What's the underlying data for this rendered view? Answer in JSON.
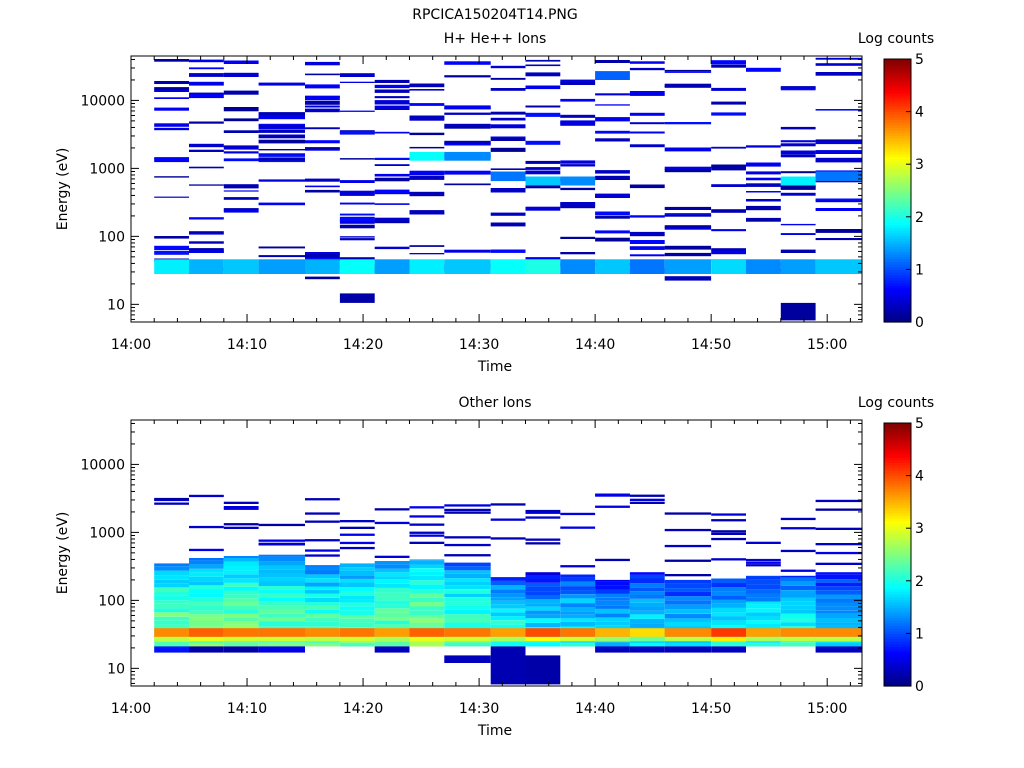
{
  "figure_title": "RPCICA150204T14.PNG",
  "chart_data": [
    {
      "type": "heatmap",
      "title": "H+ He++ Ions",
      "xlabel": "Time",
      "ylabel": "Energy (eV)",
      "x_ticks": [
        "14:00",
        "14:10",
        "14:20",
        "14:30",
        "14:40",
        "14:50",
        "15:00"
      ],
      "x_range": [
        "14:00",
        "15:03"
      ],
      "y_ticks": [
        10,
        100,
        1000,
        10000
      ],
      "y_tick_labels": [
        "10",
        "100",
        "1000",
        "10000"
      ],
      "ylim": [
        5.5,
        45000
      ],
      "y_scale": "log",
      "colorbar_title": "Log counts",
      "colorbar_ticks": [
        0,
        1,
        2,
        3,
        4,
        5
      ],
      "colorbar_range": [
        0,
        5
      ],
      "colormap": "jet",
      "time_bins_start": [
        "14:02",
        "14:05",
        "14:08",
        "14:11",
        "14:15",
        "14:18",
        "14:21",
        "14:24",
        "14:27",
        "14:31",
        "14:34",
        "14:37",
        "14:40",
        "14:43",
        "14:46",
        "14:50",
        "14:53",
        "14:56",
        "14:59"
      ],
      "time_bins_end": [
        "14:05",
        "14:08",
        "14:11",
        "14:15",
        "14:18",
        "14:21",
        "14:24",
        "14:27",
        "14:31",
        "14:34",
        "14:37",
        "14:40",
        "14:43",
        "14:46",
        "14:50",
        "14:53",
        "14:56",
        "14:59",
        "15:03"
      ],
      "cells": [
        {
          "bin": 0,
          "energy_low_eV": 28,
          "energy_high_eV": 46,
          "log_counts": 1.8
        },
        {
          "bin": 1,
          "energy_low_eV": 28,
          "energy_high_eV": 46,
          "log_counts": 1.5
        },
        {
          "bin": 2,
          "energy_low_eV": 28,
          "energy_high_eV": 46,
          "log_counts": 1.6
        },
        {
          "bin": 3,
          "energy_low_eV": 28,
          "energy_high_eV": 46,
          "log_counts": 1.4
        },
        {
          "bin": 4,
          "energy_low_eV": 28,
          "energy_high_eV": 46,
          "log_counts": 1.5
        },
        {
          "bin": 5,
          "energy_low_eV": 28,
          "energy_high_eV": 46,
          "log_counts": 1.9
        },
        {
          "bin": 6,
          "energy_low_eV": 28,
          "energy_high_eV": 46,
          "log_counts": 1.4
        },
        {
          "bin": 7,
          "energy_low_eV": 28,
          "energy_high_eV": 46,
          "log_counts": 1.8
        },
        {
          "bin": 8,
          "energy_low_eV": 28,
          "energy_high_eV": 46,
          "log_counts": 1.6
        },
        {
          "bin": 9,
          "energy_low_eV": 28,
          "energy_high_eV": 46,
          "log_counts": 1.9
        },
        {
          "bin": 10,
          "energy_low_eV": 28,
          "energy_high_eV": 46,
          "log_counts": 2.0
        },
        {
          "bin": 11,
          "energy_low_eV": 28,
          "energy_high_eV": 46,
          "log_counts": 1.3
        },
        {
          "bin": 12,
          "energy_low_eV": 28,
          "energy_high_eV": 46,
          "log_counts": 1.6
        },
        {
          "bin": 13,
          "energy_low_eV": 28,
          "energy_high_eV": 46,
          "log_counts": 1.2
        },
        {
          "bin": 14,
          "energy_low_eV": 28,
          "energy_high_eV": 46,
          "log_counts": 1.4
        },
        {
          "bin": 15,
          "energy_low_eV": 28,
          "energy_high_eV": 46,
          "log_counts": 1.7
        },
        {
          "bin": 16,
          "energy_low_eV": 28,
          "energy_high_eV": 46,
          "log_counts": 1.3
        },
        {
          "bin": 17,
          "energy_low_eV": 28,
          "energy_high_eV": 46,
          "log_counts": 1.4
        },
        {
          "bin": 18,
          "energy_low_eV": 28,
          "energy_high_eV": 46,
          "log_counts": 1.6
        },
        {
          "bin": 7,
          "energy_low_eV": 1300,
          "energy_high_eV": 1750,
          "log_counts": 1.9
        },
        {
          "bin": 8,
          "energy_low_eV": 1300,
          "energy_high_eV": 1750,
          "log_counts": 1.3
        },
        {
          "bin": 9,
          "energy_low_eV": 650,
          "energy_high_eV": 900,
          "log_counts": 1.2
        },
        {
          "bin": 10,
          "energy_low_eV": 560,
          "energy_high_eV": 760,
          "log_counts": 1.6
        },
        {
          "bin": 11,
          "energy_low_eV": 560,
          "energy_high_eV": 760,
          "log_counts": 1.3
        },
        {
          "bin": 12,
          "energy_low_eV": 20000,
          "energy_high_eV": 27000,
          "log_counts": 1.1
        },
        {
          "bin": 17,
          "energy_low_eV": 560,
          "energy_high_eV": 760,
          "log_counts": 1.8
        },
        {
          "bin": 18,
          "energy_low_eV": 650,
          "energy_high_eV": 900,
          "log_counts": 1.2
        },
        {
          "bin": 5,
          "energy_low_eV": 10.5,
          "energy_high_eV": 14.5,
          "log_counts": 0.2
        },
        {
          "bin": 17,
          "energy_low_eV": 5.8,
          "energy_high_eV": 10.5,
          "log_counts": 0.15
        }
      ],
      "sparse_low_count_cells": {
        "log_counts_range": [
          0.1,
          0.7
        ],
        "energy_range_eV": [
          22,
          40000
        ],
        "note_visible": false
      }
    },
    {
      "type": "heatmap",
      "title": "Other Ions",
      "xlabel": "Time",
      "ylabel": "Energy (eV)",
      "x_ticks": [
        "14:00",
        "14:10",
        "14:20",
        "14:30",
        "14:40",
        "14:50",
        "15:00"
      ],
      "x_range": [
        "14:00",
        "15:03"
      ],
      "y_ticks": [
        10,
        100,
        1000,
        10000
      ],
      "y_tick_labels": [
        "10",
        "100",
        "1000",
        "10000"
      ],
      "ylim": [
        5.5,
        45000
      ],
      "y_scale": "log",
      "colorbar_title": "Log counts",
      "colorbar_ticks": [
        0,
        1,
        2,
        3,
        4,
        5
      ],
      "colorbar_range": [
        0,
        5
      ],
      "colormap": "jet",
      "time_bins_start": [
        "14:02",
        "14:05",
        "14:08",
        "14:11",
        "14:15",
        "14:18",
        "14:21",
        "14:24",
        "14:27",
        "14:31",
        "14:34",
        "14:37",
        "14:40",
        "14:43",
        "14:46",
        "14:50",
        "14:53",
        "14:56",
        "14:59"
      ],
      "time_bins_end": [
        "14:05",
        "14:08",
        "14:11",
        "14:15",
        "14:18",
        "14:21",
        "14:24",
        "14:27",
        "14:31",
        "14:34",
        "14:37",
        "14:40",
        "14:43",
        "14:46",
        "14:50",
        "14:53",
        "14:56",
        "14:59",
        "15:03"
      ],
      "peak_band": {
        "energy_low_eV": 29,
        "energy_high_eV": 39,
        "log_counts_by_bin": [
          3.7,
          3.9,
          3.8,
          3.8,
          3.7,
          3.8,
          3.6,
          3.9,
          3.8,
          3.6,
          4.0,
          3.8,
          3.5,
          3.3,
          3.7,
          4.1,
          3.6,
          3.7,
          3.7
        ]
      },
      "profile_by_bin": {
        "upper_edge_eV": [
          350,
          420,
          450,
          470,
          330,
          350,
          380,
          400,
          360,
          220,
          260,
          240,
          200,
          260,
          200,
          210,
          230,
          230,
          260
        ],
        "core_log_counts": [
          2.2,
          2.1,
          2.2,
          2.1,
          2.0,
          2.1,
          2.1,
          2.3,
          2.0,
          1.8,
          1.5,
          1.6,
          1.4,
          1.5,
          1.5,
          1.6,
          1.7,
          1.8,
          1.5
        ]
      },
      "low_energy_cells": [
        {
          "bin": 0,
          "energy_low_eV": 17,
          "energy_high_eV": 21,
          "log_counts": 0.7
        },
        {
          "bin": 1,
          "energy_low_eV": 17,
          "energy_high_eV": 21,
          "log_counts": 0.2
        },
        {
          "bin": 2,
          "energy_low_eV": 17,
          "energy_high_eV": 21,
          "log_counts": 0.2
        },
        {
          "bin": 3,
          "energy_low_eV": 17,
          "energy_high_eV": 21,
          "log_counts": 0.5
        },
        {
          "bin": 6,
          "energy_low_eV": 17,
          "energy_high_eV": 21,
          "log_counts": 0.3
        },
        {
          "bin": 8,
          "energy_low_eV": 12,
          "energy_high_eV": 15.5,
          "log_counts": 0.3
        },
        {
          "bin": 9,
          "energy_low_eV": 5.8,
          "energy_high_eV": 21,
          "log_counts": 0.25
        },
        {
          "bin": 10,
          "energy_low_eV": 5.8,
          "energy_high_eV": 15.5,
          "log_counts": 0.2
        },
        {
          "bin": 12,
          "energy_low_eV": 17,
          "energy_high_eV": 21,
          "log_counts": 0.3
        },
        {
          "bin": 13,
          "energy_low_eV": 17,
          "energy_high_eV": 21,
          "log_counts": 0.3
        },
        {
          "bin": 14,
          "energy_low_eV": 17,
          "energy_high_eV": 21,
          "log_counts": 0.3
        },
        {
          "bin": 15,
          "energy_low_eV": 17,
          "energy_high_eV": 21,
          "log_counts": 0.3
        },
        {
          "bin": 18,
          "energy_low_eV": 17,
          "energy_high_eV": 21,
          "log_counts": 0.3
        }
      ]
    }
  ]
}
